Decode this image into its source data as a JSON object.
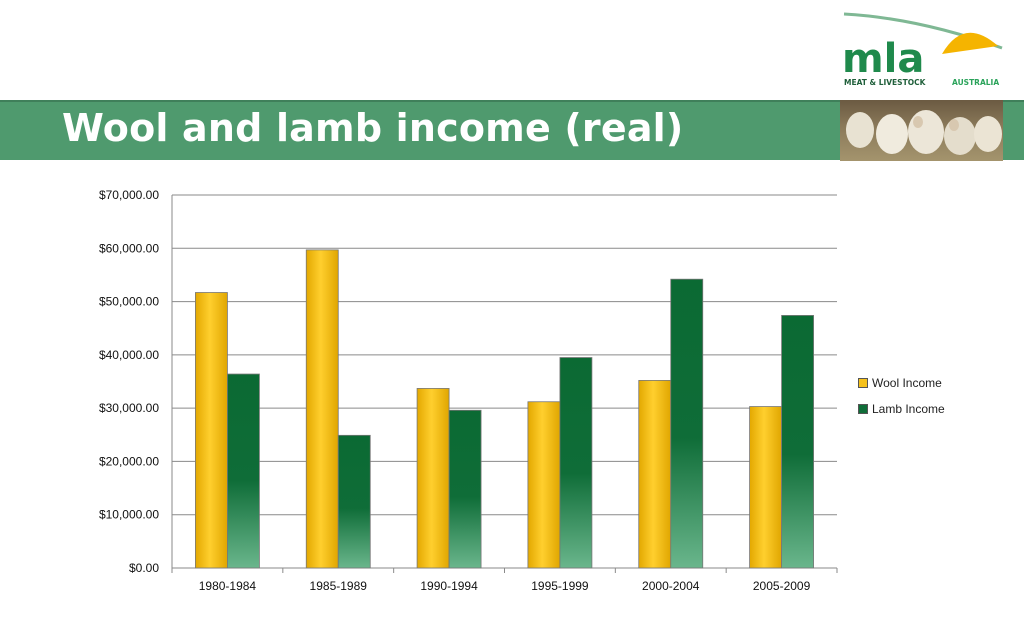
{
  "slide": {
    "title": "Wool and lamb income (real)",
    "logo_text": "mla",
    "logo_subtext_1": "MEAT & LIVESTOCK",
    "logo_subtext_2": "AUSTRALIA"
  },
  "colors": {
    "wool": "#f5c11c",
    "lamb": "#0f6d38",
    "header_green": "#4f9a6e"
  },
  "chart_data": {
    "type": "bar",
    "categories": [
      "1980-1984",
      "1985-1989",
      "1990-1994",
      "1995-1999",
      "2000-2004",
      "2005-2009"
    ],
    "series": [
      {
        "name": "Wool Income",
        "values": [
          51700,
          59700,
          33700,
          31200,
          35200,
          30300
        ]
      },
      {
        "name": "Lamb Income",
        "values": [
          36400,
          24900,
          29600,
          39500,
          54200,
          47400
        ]
      }
    ],
    "ylim": [
      0,
      70000
    ],
    "yticks": [
      "$0.00",
      "$10,000.00",
      "$20,000.00",
      "$30,000.00",
      "$40,000.00",
      "$50,000.00",
      "$60,000.00",
      "$70,000.00"
    ],
    "grid": true,
    "legend_position": "right"
  }
}
